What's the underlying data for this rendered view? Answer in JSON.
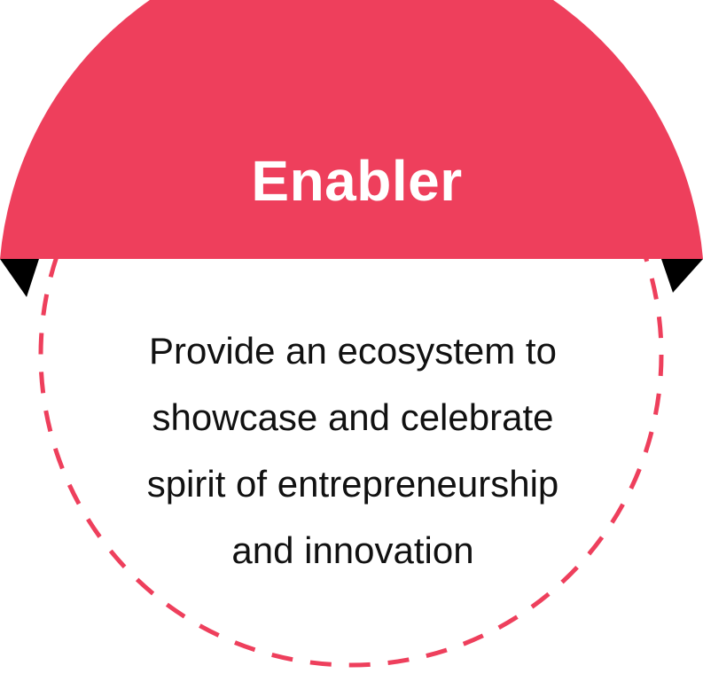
{
  "card": {
    "title": "Enabler",
    "description_lines": [
      "Provide an ecosystem to",
      "showcase and celebrate",
      "spirit of entrepreneurship",
      "and innovation"
    ]
  },
  "colors": {
    "accent": "#ee3f5c",
    "text": "#111111",
    "tab": "#000000",
    "background": "#ffffff"
  }
}
